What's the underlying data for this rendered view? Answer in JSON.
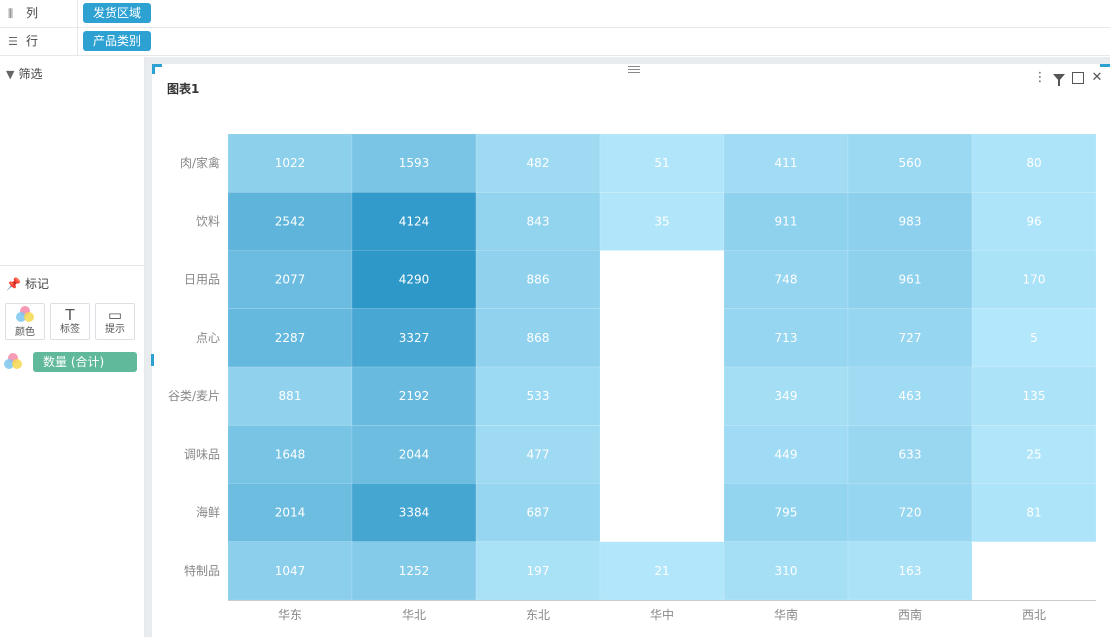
{
  "shelves": {
    "columns": {
      "label": "列",
      "icon": "columns-icon",
      "field": "发货区域"
    },
    "rows": {
      "label": "行",
      "icon": "rows-icon",
      "field": "产品类别"
    }
  },
  "left_panel": {
    "filter": {
      "label": "筛选",
      "icon": "filter-icon"
    },
    "marks": {
      "label": "标记",
      "icon": "pin-icon",
      "buttons": [
        {
          "label": "颜色",
          "icon": "color-dots-icon"
        },
        {
          "label": "标签",
          "icon": "text-t-icon",
          "glyph": "T"
        },
        {
          "label": "提示",
          "icon": "tooltip-icon",
          "glyph": "▭"
        }
      ],
      "measure": {
        "label": "数量 (合计)",
        "icon": "color-dots-icon"
      }
    }
  },
  "chart_panel": {
    "title": "图表1",
    "toolbar": [
      {
        "icon": "more-vertical-icon",
        "glyph": "⋮"
      },
      {
        "icon": "filter-icon"
      },
      {
        "icon": "maximize-icon"
      },
      {
        "icon": "close-icon",
        "glyph": "✕"
      }
    ]
  },
  "colors": {
    "accent": "#2ea1d3",
    "measure_pill": "#5fb99a",
    "scale_low": "#b3e7fb",
    "scale_high": "#2e98c9"
  },
  "chart_data": {
    "type": "heatmap",
    "x": [
      "华东",
      "华北",
      "东北",
      "华中",
      "华南",
      "西南",
      "西北"
    ],
    "y": [
      "肉/家禽",
      "饮料",
      "日用品",
      "点心",
      "谷类/麦片",
      "调味品",
      "海鲜",
      "特制品"
    ],
    "values": [
      [
        1022,
        1593,
        482,
        51,
        411,
        560,
        80
      ],
      [
        2542,
        4124,
        843,
        35,
        911,
        983,
        96
      ],
      [
        2077,
        4290,
        886,
        null,
        748,
        961,
        170
      ],
      [
        2287,
        3327,
        868,
        null,
        713,
        727,
        5
      ],
      [
        881,
        2192,
        533,
        null,
        349,
        463,
        135
      ],
      [
        1648,
        2044,
        477,
        null,
        449,
        633,
        25
      ],
      [
        2014,
        3384,
        687,
        null,
        795,
        720,
        81
      ],
      [
        1047,
        1252,
        197,
        21,
        310,
        163,
        null
      ]
    ],
    "measure": "数量 (合计)",
    "legend": "none"
  }
}
